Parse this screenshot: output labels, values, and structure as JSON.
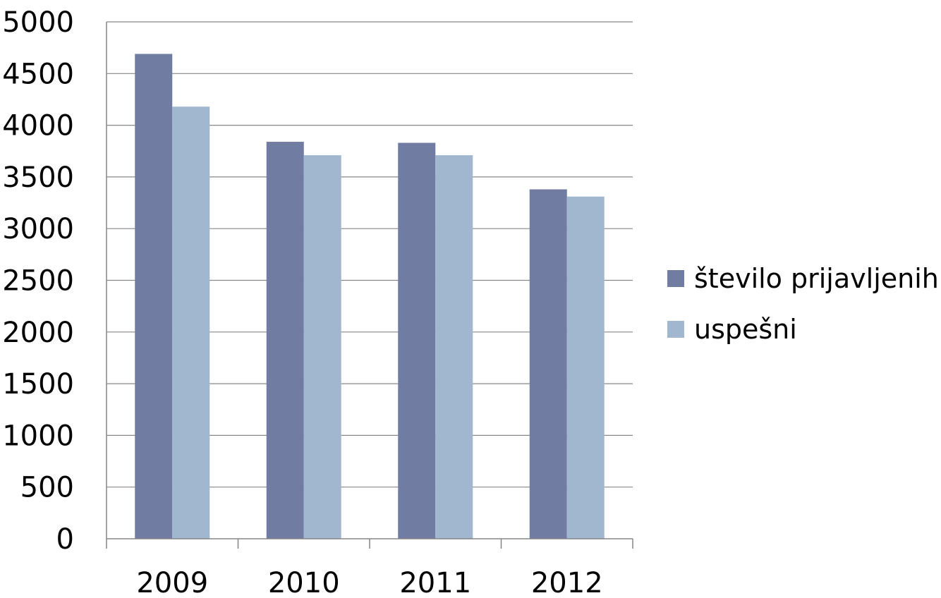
{
  "chart_data": {
    "type": "bar",
    "categories": [
      "2009",
      "2010",
      "2011",
      "2012"
    ],
    "series": [
      {
        "name": "število prijavljenih",
        "values": [
          4690,
          3840,
          3830,
          3380
        ],
        "color": "#717ca2"
      },
      {
        "name": "uspešni",
        "values": [
          4180,
          3710,
          3710,
          3310
        ],
        "color": "#a1b7cf"
      }
    ],
    "ylim": [
      0,
      5000
    ],
    "yticks": [
      "0",
      "500",
      "1000",
      "1500",
      "2000",
      "2500",
      "3000",
      "3500",
      "4000",
      "4500",
      "5000"
    ],
    "grid": true,
    "legend_position": "right",
    "title": "",
    "xlabel": "",
    "ylabel": ""
  }
}
